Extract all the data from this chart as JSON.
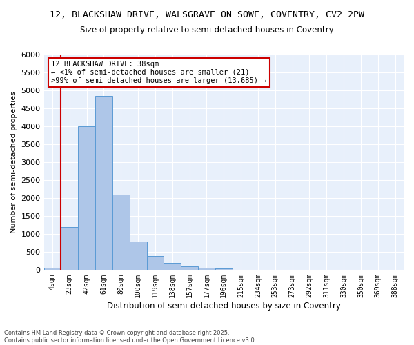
{
  "title_line1": "12, BLACKSHAW DRIVE, WALSGRAVE ON SOWE, COVENTRY, CV2 2PW",
  "title_line2": "Size of property relative to semi-detached houses in Coventry",
  "xlabel": "Distribution of semi-detached houses by size in Coventry",
  "ylabel": "Number of semi-detached properties",
  "bar_labels": [
    "4sqm",
    "23sqm",
    "42sqm",
    "61sqm",
    "80sqm",
    "100sqm",
    "119sqm",
    "138sqm",
    "157sqm",
    "177sqm",
    "196sqm",
    "215sqm",
    "234sqm",
    "253sqm",
    "273sqm",
    "292sqm",
    "311sqm",
    "330sqm",
    "350sqm",
    "369sqm",
    "388sqm"
  ],
  "bar_values": [
    70,
    1200,
    4000,
    4850,
    2100,
    800,
    390,
    200,
    110,
    60,
    40,
    0,
    0,
    0,
    0,
    0,
    0,
    0,
    0,
    0,
    0
  ],
  "bar_color": "#aec6e8",
  "bar_edge_color": "#5b9bd5",
  "background_color": "#e8f0fb",
  "vline_color": "#cc0000",
  "ylim": [
    0,
    6000
  ],
  "yticks": [
    0,
    500,
    1000,
    1500,
    2000,
    2500,
    3000,
    3500,
    4000,
    4500,
    5000,
    5500,
    6000
  ],
  "annotation_title": "12 BLACKSHAW DRIVE: 38sqm",
  "annotation_line1": "← <1% of semi-detached houses are smaller (21)",
  "annotation_line2": ">99% of semi-detached houses are larger (13,685) →",
  "annotation_box_color": "#cc0000",
  "footer_line1": "Contains HM Land Registry data © Crown copyright and database right 2025.",
  "footer_line2": "Contains public sector information licensed under the Open Government Licence v3.0."
}
